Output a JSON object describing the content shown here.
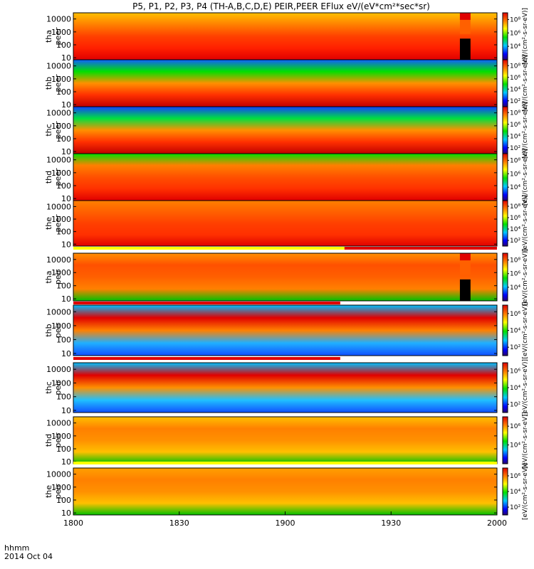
{
  "chart_data": {
    "type": "heatmap",
    "title": "P5, P1, P2, P3, P4 (TH-A,B,C,D,E) PEIR,PEER EFlux eV/(eV*cm²*sec*sr)",
    "xlabel_lines": [
      "hhmm",
      "2014 Oct 04"
    ],
    "x_ticks": [
      "1800",
      "1830",
      "1900",
      "1930",
      "2000"
    ],
    "x_range_minutes": [
      0,
      120
    ],
    "y_scale": "log",
    "y_range_eV": [
      7,
      30000
    ],
    "y_ticks": [
      "10",
      "100",
      "1000",
      "10000"
    ],
    "colorbar_label": "[eV/(cm²-s-sr-eV)]",
    "colormap": "rainbow",
    "panels": [
      {
        "name": "tha peer",
        "label1": "tha",
        "label2": "peer",
        "cb_ticks": [
          "10⁴",
          "10⁶",
          "10⁸"
        ],
        "cb_range": [
          2,
          9
        ]
      },
      {
        "name": "thb peer",
        "label1": "thb",
        "label2": "peer",
        "cb_ticks": [
          "10²",
          "10⁴",
          "10⁶",
          "10⁸"
        ],
        "cb_range": [
          1,
          9
        ]
      },
      {
        "name": "thc peer",
        "label1": "thc",
        "label2": "peer",
        "cb_ticks": [
          "10²",
          "10⁴",
          "10⁶",
          "10⁸"
        ],
        "cb_range": [
          1,
          9
        ]
      },
      {
        "name": "thd peer",
        "label1": "thd",
        "label2": "peer",
        "cb_ticks": [
          "10⁴",
          "10⁶",
          "10⁸"
        ],
        "cb_range": [
          2,
          9
        ]
      },
      {
        "name": "the peer",
        "label1": "the",
        "label2": "peer",
        "cb_ticks": [
          "10²",
          "10⁴",
          "10⁶",
          "10⁸"
        ],
        "cb_range": [
          1,
          9
        ]
      },
      {
        "name": "tha peir",
        "label1": "tha",
        "label2": "peir",
        "cb_ticks": [
          "10⁴",
          "10⁶",
          "10⁸"
        ],
        "cb_range": [
          2,
          9
        ]
      },
      {
        "name": "thb peir",
        "label1": "thb",
        "label2": "peir",
        "cb_ticks": [
          "10²",
          "10⁴",
          "10⁶"
        ],
        "cb_range": [
          1,
          7
        ]
      },
      {
        "name": "thc peir",
        "label1": "thc",
        "label2": "peir",
        "cb_ticks": [
          "10²",
          "10⁴",
          "10⁶"
        ],
        "cb_range": [
          1,
          7
        ]
      },
      {
        "name": "thd peir",
        "label1": "thd",
        "label2": "peir",
        "cb_ticks": [
          "10⁴",
          "10⁶"
        ],
        "cb_range": [
          2,
          7
        ]
      },
      {
        "name": "the peir",
        "label1": "the",
        "label2": "peir",
        "cb_ticks": [
          "10²",
          "10⁴",
          "10⁶"
        ],
        "cb_range": [
          1,
          7
        ]
      }
    ],
    "data_gap_minutes": [
      109.5,
      112.5
    ]
  }
}
